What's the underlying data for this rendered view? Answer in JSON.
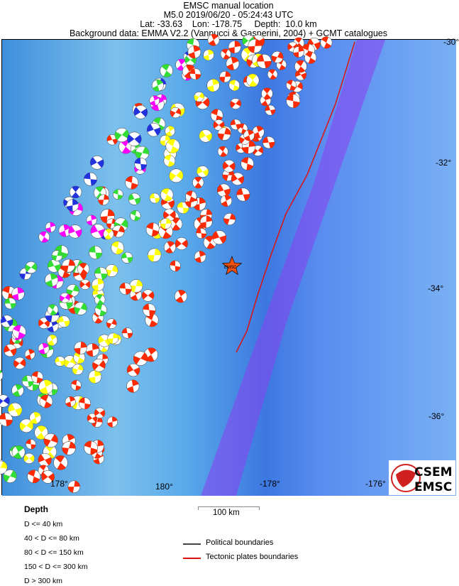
{
  "header": {
    "title": "EMSC manual location",
    "line2": "M5.0  2019/06/20 - 05:24:43 UTC",
    "line3": "Lat: -33.63    Lon: -178.75     Depth:  10.0 km",
    "line4": "Background data: EMMA V2.2 (Vannucci & Gasperini, 2004) + GCMT catalogues"
  },
  "map": {
    "lat_ticks": [
      "-30°",
      "-32°",
      "-34°",
      "-36°"
    ],
    "lon_ticks": [
      "178°",
      "180°",
      "-178°",
      "-176°"
    ],
    "epicenter_label": "EMSC",
    "epicenter": {
      "lat": -33.63,
      "lon": -178.75
    },
    "colors": {
      "ocean": "#4aa0e8",
      "trench": "#8a3cf0",
      "plate_boundary": "#e01010",
      "epicenter": "#f05010"
    }
  },
  "legend": {
    "depth_title": "Depth",
    "depth_classes": [
      {
        "label": "D <= 40 km",
        "color": "#ff2a00"
      },
      {
        "label": "40 < D <= 80 km",
        "color": "#ffff00"
      },
      {
        "label": "80 < D <= 150 km",
        "color": "#33dd33"
      },
      {
        "label": "150 < D <= 300 km",
        "color": "#2233dd"
      },
      {
        "label": "D > 300 km",
        "color": "#ff00ff"
      }
    ],
    "scale": "100 km",
    "lines": [
      {
        "label": "Political boundaries",
        "color": "#444444"
      },
      {
        "label": "Tectonic plates boundaries",
        "color": "#e01010"
      }
    ]
  },
  "logo": {
    "top": "CSEM",
    "bottom": "EMSC"
  }
}
